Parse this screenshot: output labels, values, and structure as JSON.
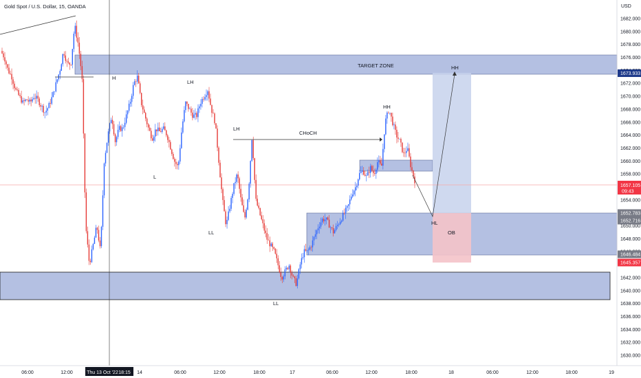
{
  "header": {
    "title": "Gold Spot / U.S. Dollar, 15, OANDA"
  },
  "chart_data": {
    "type": "candlestick",
    "instrument": "Gold Spot / U.S. Dollar",
    "interval": "15",
    "source": "OANDA",
    "currency_label": "USD",
    "ylim": [
      1630,
      1684
    ],
    "yticks": [
      1630,
      1632,
      1634,
      1636,
      1638,
      1640,
      1642,
      1644,
      1646,
      1648,
      1650,
      1652,
      1654,
      1656,
      1658,
      1660,
      1662,
      1664,
      1666,
      1668,
      1670,
      1672,
      1674,
      1676,
      1678,
      1680,
      1682
    ],
    "xlabels": [
      "06:00",
      "12:00",
      "Thu 13 Oct '22",
      "18:15",
      "14",
      "06:00",
      "12:00",
      "18:00",
      "17",
      "06:00",
      "12:00",
      "18:00",
      "18",
      "06:00",
      "12:00",
      "18:00",
      "19"
    ],
    "current_price": "1657.105",
    "countdown": "09:43",
    "price_tags": [
      {
        "value": "1673.933",
        "color": "#1e3a8a"
      },
      {
        "value": "1652.783",
        "color": "#787b86"
      },
      {
        "value": "1652.716",
        "color": "#787b86"
      },
      {
        "value": "1646.484",
        "color": "#787b86"
      },
      {
        "value": "1645.357",
        "color": "#f23645"
      }
    ],
    "path": [
      1677,
      1676,
      1674,
      1673,
      1671,
      1670,
      1669,
      1669.5,
      1669,
      1670,
      1669.5,
      1668.5,
      1667.5,
      1668.5,
      1670,
      1672,
      1674,
      1677,
      1675,
      1675,
      1681,
      1678,
      1673,
      1650,
      1644,
      1647,
      1650,
      1646,
      1660,
      1664,
      1667,
      1663,
      1665,
      1665,
      1667,
      1669,
      1672,
      1673,
      1669,
      1667,
      1665,
      1663.5,
      1665,
      1664.5,
      1665,
      1664,
      1662,
      1660,
      1659,
      1665,
      1669,
      1668,
      1667,
      1667,
      1669,
      1670,
      1671,
      1668,
      1666,
      1660,
      1654,
      1650,
      1653,
      1656,
      1658,
      1654,
      1651,
      1655,
      1664,
      1654,
      1652,
      1650,
      1648,
      1647,
      1646,
      1644,
      1642,
      1643,
      1644,
      1642,
      1641,
      1644,
      1646,
      1646,
      1647,
      1648.5,
      1650,
      1651,
      1651,
      1650,
      1649,
      1650,
      1651,
      1652,
      1653,
      1655,
      1656,
      1658,
      1658.5,
      1657.5,
      1659,
      1658,
      1660,
      1659,
      1666,
      1668,
      1666,
      1664,
      1663,
      1661,
      1662,
      1659,
      1657
    ],
    "zones": [
      {
        "name": "target",
        "label": "TARGET  ZONE",
        "y0": 1676.8,
        "y1": 1674.0
      },
      {
        "name": "demand",
        "label": "",
        "y0": 1652.8,
        "y1": 1646.5
      },
      {
        "name": "support",
        "label": "",
        "y0": 1643.9,
        "y1": 1639.9
      },
      {
        "name": "small",
        "label": "",
        "y0": 1660.8,
        "y1": 1659.2
      },
      {
        "name": "ob",
        "label": "OB",
        "y0": 1652.8,
        "y1": 1645.3
      }
    ],
    "annotations": [
      "H",
      "L",
      "LH",
      "LL",
      "LH",
      "CHoCH",
      "LL",
      "HH",
      "HL",
      "OB",
      "HH"
    ]
  }
}
